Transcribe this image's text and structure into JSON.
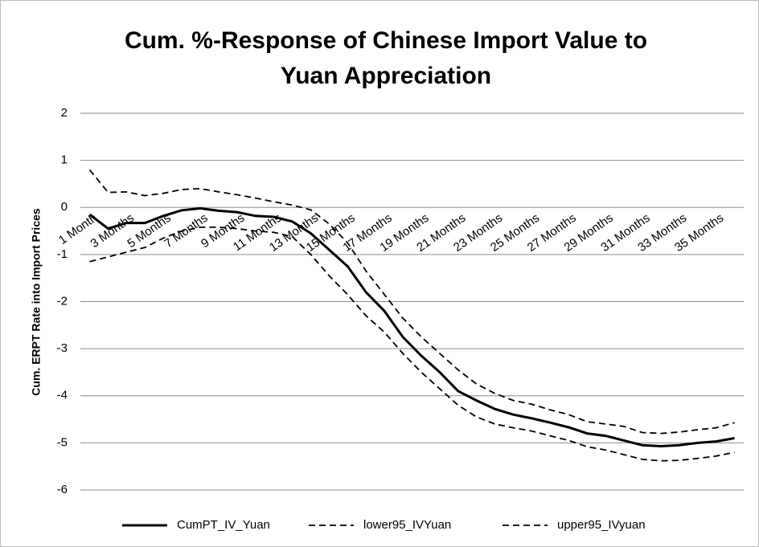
{
  "chart_data": {
    "type": "line",
    "title": [
      "Cum.  %-Response of  Chinese Import Value to",
      "Yuan Appreciation"
    ],
    "y_label": "Cum. ERPT Rate into Import Prices",
    "categories": [
      "1 Month",
      null,
      "3 Months",
      null,
      "5 Months",
      null,
      "7 Months",
      null,
      "9 Months",
      null,
      "11 Months",
      null,
      "13 Months",
      null,
      "15 Months",
      null,
      "17 Months",
      null,
      "19 Months",
      null,
      "21 Months",
      null,
      "23 Months",
      null,
      "25 Months",
      null,
      "27 Months",
      null,
      "29 Months",
      null,
      "31 Months",
      null,
      "33 Months",
      null,
      "35 Months",
      null
    ],
    "series": [
      {
        "name": "CumPT_IV_Yuan",
        "color": "#000000",
        "style": "solid",
        "values": [
          -0.15,
          -0.45,
          -0.33,
          -0.33,
          -0.18,
          -0.06,
          -0.02,
          -0.07,
          -0.1,
          -0.18,
          -0.2,
          -0.3,
          -0.55,
          -0.9,
          -1.25,
          -1.8,
          -2.2,
          -2.75,
          -3.15,
          -3.5,
          -3.9,
          -4.1,
          -4.28,
          -4.4,
          -4.48,
          -4.57,
          -4.67,
          -4.8,
          -4.85,
          -4.95,
          -5.05,
          -5.07,
          -5.05,
          -5.0,
          -4.97,
          -4.9
        ]
      },
      {
        "name": "lower95_IVYuan",
        "color": "#000000",
        "style": "dashed",
        "values": [
          -1.15,
          -1.05,
          -0.95,
          -0.85,
          -0.65,
          -0.5,
          -0.42,
          -0.42,
          -0.45,
          -0.5,
          -0.53,
          -0.62,
          -1.0,
          -1.45,
          -1.85,
          -2.3,
          -2.65,
          -3.1,
          -3.5,
          -3.85,
          -4.2,
          -4.45,
          -4.6,
          -4.68,
          -4.75,
          -4.85,
          -4.95,
          -5.08,
          -5.15,
          -5.25,
          -5.35,
          -5.38,
          -5.37,
          -5.33,
          -5.28,
          -5.2
        ]
      },
      {
        "name": "upper95_IVyuan",
        "color": "#000000",
        "style": "dashed",
        "values": [
          0.8,
          0.32,
          0.33,
          0.25,
          0.3,
          0.38,
          0.4,
          0.33,
          0.27,
          0.2,
          0.12,
          0.05,
          -0.05,
          -0.35,
          -0.75,
          -1.35,
          -1.85,
          -2.35,
          -2.75,
          -3.1,
          -3.45,
          -3.75,
          -3.95,
          -4.1,
          -4.18,
          -4.3,
          -4.4,
          -4.55,
          -4.6,
          -4.65,
          -4.78,
          -4.8,
          -4.77,
          -4.72,
          -4.68,
          -4.57
        ]
      }
    ],
    "ylim": [
      -6,
      2
    ],
    "yticks": [
      -6,
      -5,
      -4,
      -3,
      -2,
      -1,
      0,
      1,
      2
    ],
    "grid": true,
    "legend": "bottom"
  }
}
